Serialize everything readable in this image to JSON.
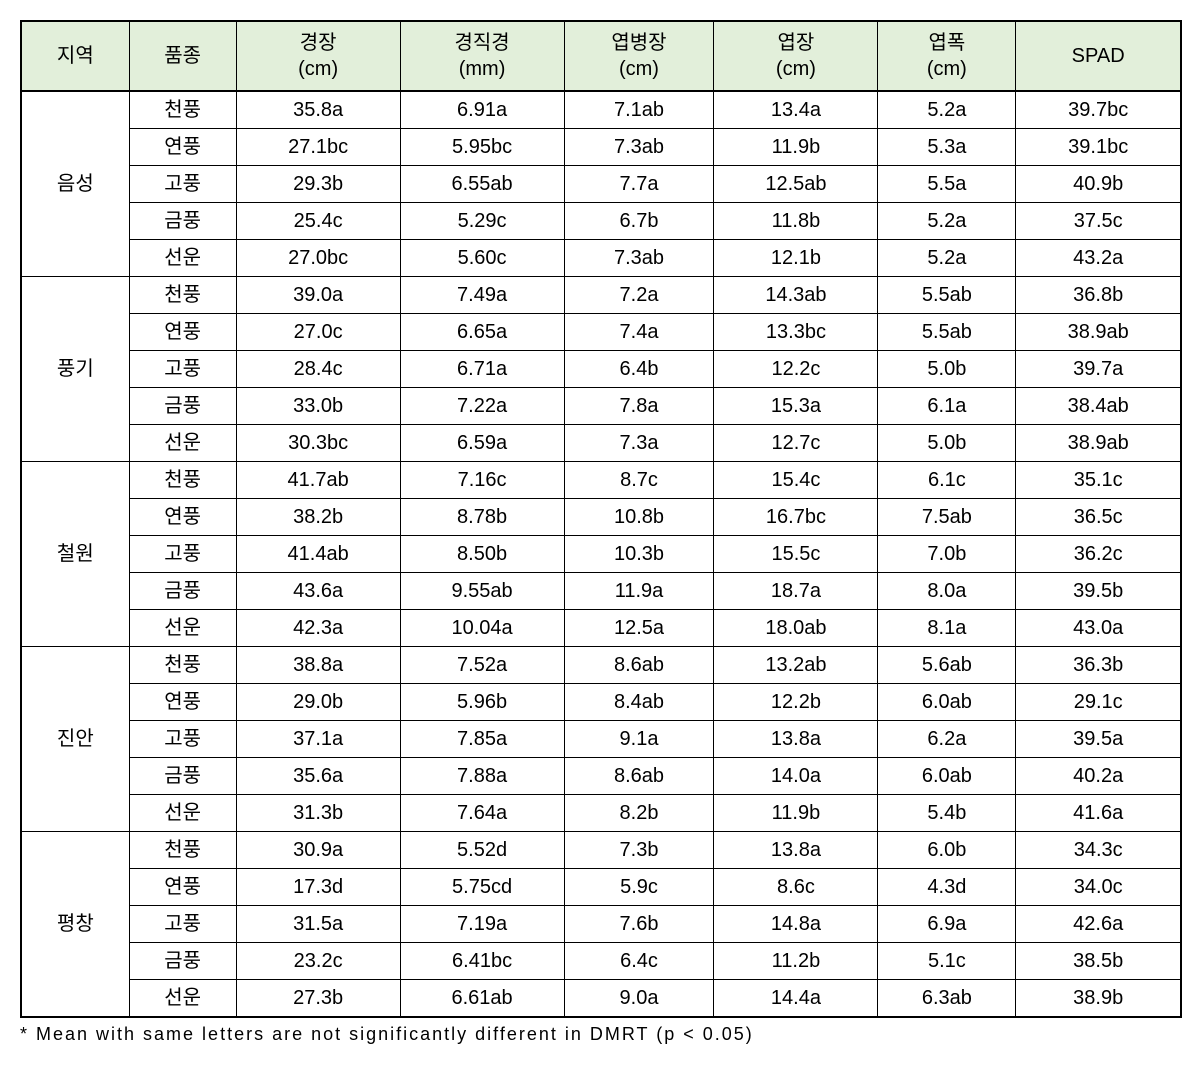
{
  "table": {
    "columns": [
      {
        "label": "지역"
      },
      {
        "label": "품종"
      },
      {
        "label_line1": "경장",
        "label_line2": "(cm)"
      },
      {
        "label_line1": "경직경",
        "label_line2": "(mm)"
      },
      {
        "label_line1": "엽병장",
        "label_line2": "(cm)"
      },
      {
        "label_line1": "엽장",
        "label_line2": "(cm)"
      },
      {
        "label_line1": "엽폭",
        "label_line2": "(cm)"
      },
      {
        "label": "SPAD"
      }
    ],
    "header_bg_color": "#e2efda",
    "border_color": "#000000",
    "groups": [
      {
        "region": "음성",
        "rows": [
          {
            "variety": "천풍",
            "c1": "35.8a",
            "c2": "6.91a",
            "c3": "7.1ab",
            "c4": "13.4a",
            "c5": "5.2a",
            "c6": "39.7bc"
          },
          {
            "variety": "연풍",
            "c1": "27.1bc",
            "c2": "5.95bc",
            "c3": "7.3ab",
            "c4": "11.9b",
            "c5": "5.3a",
            "c6": "39.1bc"
          },
          {
            "variety": "고풍",
            "c1": "29.3b",
            "c2": "6.55ab",
            "c3": "7.7a",
            "c4": "12.5ab",
            "c5": "5.5a",
            "c6": "40.9b"
          },
          {
            "variety": "금풍",
            "c1": "25.4c",
            "c2": "5.29c",
            "c3": "6.7b",
            "c4": "11.8b",
            "c5": "5.2a",
            "c6": "37.5c"
          },
          {
            "variety": "선운",
            "c1": "27.0bc",
            "c2": "5.60c",
            "c3": "7.3ab",
            "c4": "12.1b",
            "c5": "5.2a",
            "c6": "43.2a"
          }
        ]
      },
      {
        "region": "풍기",
        "rows": [
          {
            "variety": "천풍",
            "c1": "39.0a",
            "c2": "7.49a",
            "c3": "7.2a",
            "c4": "14.3ab",
            "c5": "5.5ab",
            "c6": "36.8b"
          },
          {
            "variety": "연풍",
            "c1": "27.0c",
            "c2": "6.65a",
            "c3": "7.4a",
            "c4": "13.3bc",
            "c5": "5.5ab",
            "c6": "38.9ab"
          },
          {
            "variety": "고풍",
            "c1": "28.4c",
            "c2": "6.71a",
            "c3": "6.4b",
            "c4": "12.2c",
            "c5": "5.0b",
            "c6": "39.7a"
          },
          {
            "variety": "금풍",
            "c1": "33.0b",
            "c2": "7.22a",
            "c3": "7.8a",
            "c4": "15.3a",
            "c5": "6.1a",
            "c6": "38.4ab"
          },
          {
            "variety": "선운",
            "c1": "30.3bc",
            "c2": "6.59a",
            "c3": "7.3a",
            "c4": "12.7c",
            "c5": "5.0b",
            "c6": "38.9ab"
          }
        ]
      },
      {
        "region": "철원",
        "rows": [
          {
            "variety": "천풍",
            "c1": "41.7ab",
            "c2": "7.16c",
            "c3": "8.7c",
            "c4": "15.4c",
            "c5": "6.1c",
            "c6": "35.1c"
          },
          {
            "variety": "연풍",
            "c1": "38.2b",
            "c2": "8.78b",
            "c3": "10.8b",
            "c4": "16.7bc",
            "c5": "7.5ab",
            "c6": "36.5c"
          },
          {
            "variety": "고풍",
            "c1": "41.4ab",
            "c2": "8.50b",
            "c3": "10.3b",
            "c4": "15.5c",
            "c5": "7.0b",
            "c6": "36.2c"
          },
          {
            "variety": "금풍",
            "c1": "43.6a",
            "c2": "9.55ab",
            "c3": "11.9a",
            "c4": "18.7a",
            "c5": "8.0a",
            "c6": "39.5b"
          },
          {
            "variety": "선운",
            "c1": "42.3a",
            "c2": "10.04a",
            "c3": "12.5a",
            "c4": "18.0ab",
            "c5": "8.1a",
            "c6": "43.0a"
          }
        ]
      },
      {
        "region": "진안",
        "rows": [
          {
            "variety": "천풍",
            "c1": "38.8a",
            "c2": "7.52a",
            "c3": "8.6ab",
            "c4": "13.2ab",
            "c5": "5.6ab",
            "c6": "36.3b"
          },
          {
            "variety": "연풍",
            "c1": "29.0b",
            "c2": "5.96b",
            "c3": "8.4ab",
            "c4": "12.2b",
            "c5": "6.0ab",
            "c6": "29.1c"
          },
          {
            "variety": "고풍",
            "c1": "37.1a",
            "c2": "7.85a",
            "c3": "9.1a",
            "c4": "13.8a",
            "c5": "6.2a",
            "c6": "39.5a"
          },
          {
            "variety": "금풍",
            "c1": "35.6a",
            "c2": "7.88a",
            "c3": "8.6ab",
            "c4": "14.0a",
            "c5": "6.0ab",
            "c6": "40.2a"
          },
          {
            "variety": "선운",
            "c1": "31.3b",
            "c2": "7.64a",
            "c3": "8.2b",
            "c4": "11.9b",
            "c5": "5.4b",
            "c6": "41.6a"
          }
        ]
      },
      {
        "region": "평창",
        "rows": [
          {
            "variety": "천풍",
            "c1": "30.9a",
            "c2": "5.52d",
            "c3": "7.3b",
            "c4": "13.8a",
            "c5": "6.0b",
            "c6": "34.3c"
          },
          {
            "variety": "연풍",
            "c1": "17.3d",
            "c2": "5.75cd",
            "c3": "5.9c",
            "c4": "8.6c",
            "c5": "4.3d",
            "c6": "34.0c"
          },
          {
            "variety": "고풍",
            "c1": "31.5a",
            "c2": "7.19a",
            "c3": "7.6b",
            "c4": "14.8a",
            "c5": "6.9a",
            "c6": "42.6a"
          },
          {
            "variety": "금풍",
            "c1": "23.2c",
            "c2": "6.41bc",
            "c3": "6.4c",
            "c4": "11.2b",
            "c5": "5.1c",
            "c6": "38.5b"
          },
          {
            "variety": "선운",
            "c1": "27.3b",
            "c2": "6.61ab",
            "c3": "9.0a",
            "c4": "14.4a",
            "c5": "6.3ab",
            "c6": "38.9b"
          }
        ]
      }
    ]
  },
  "footnote": "* Mean with same letters are not significantly different in DMRT (p < 0.05)"
}
